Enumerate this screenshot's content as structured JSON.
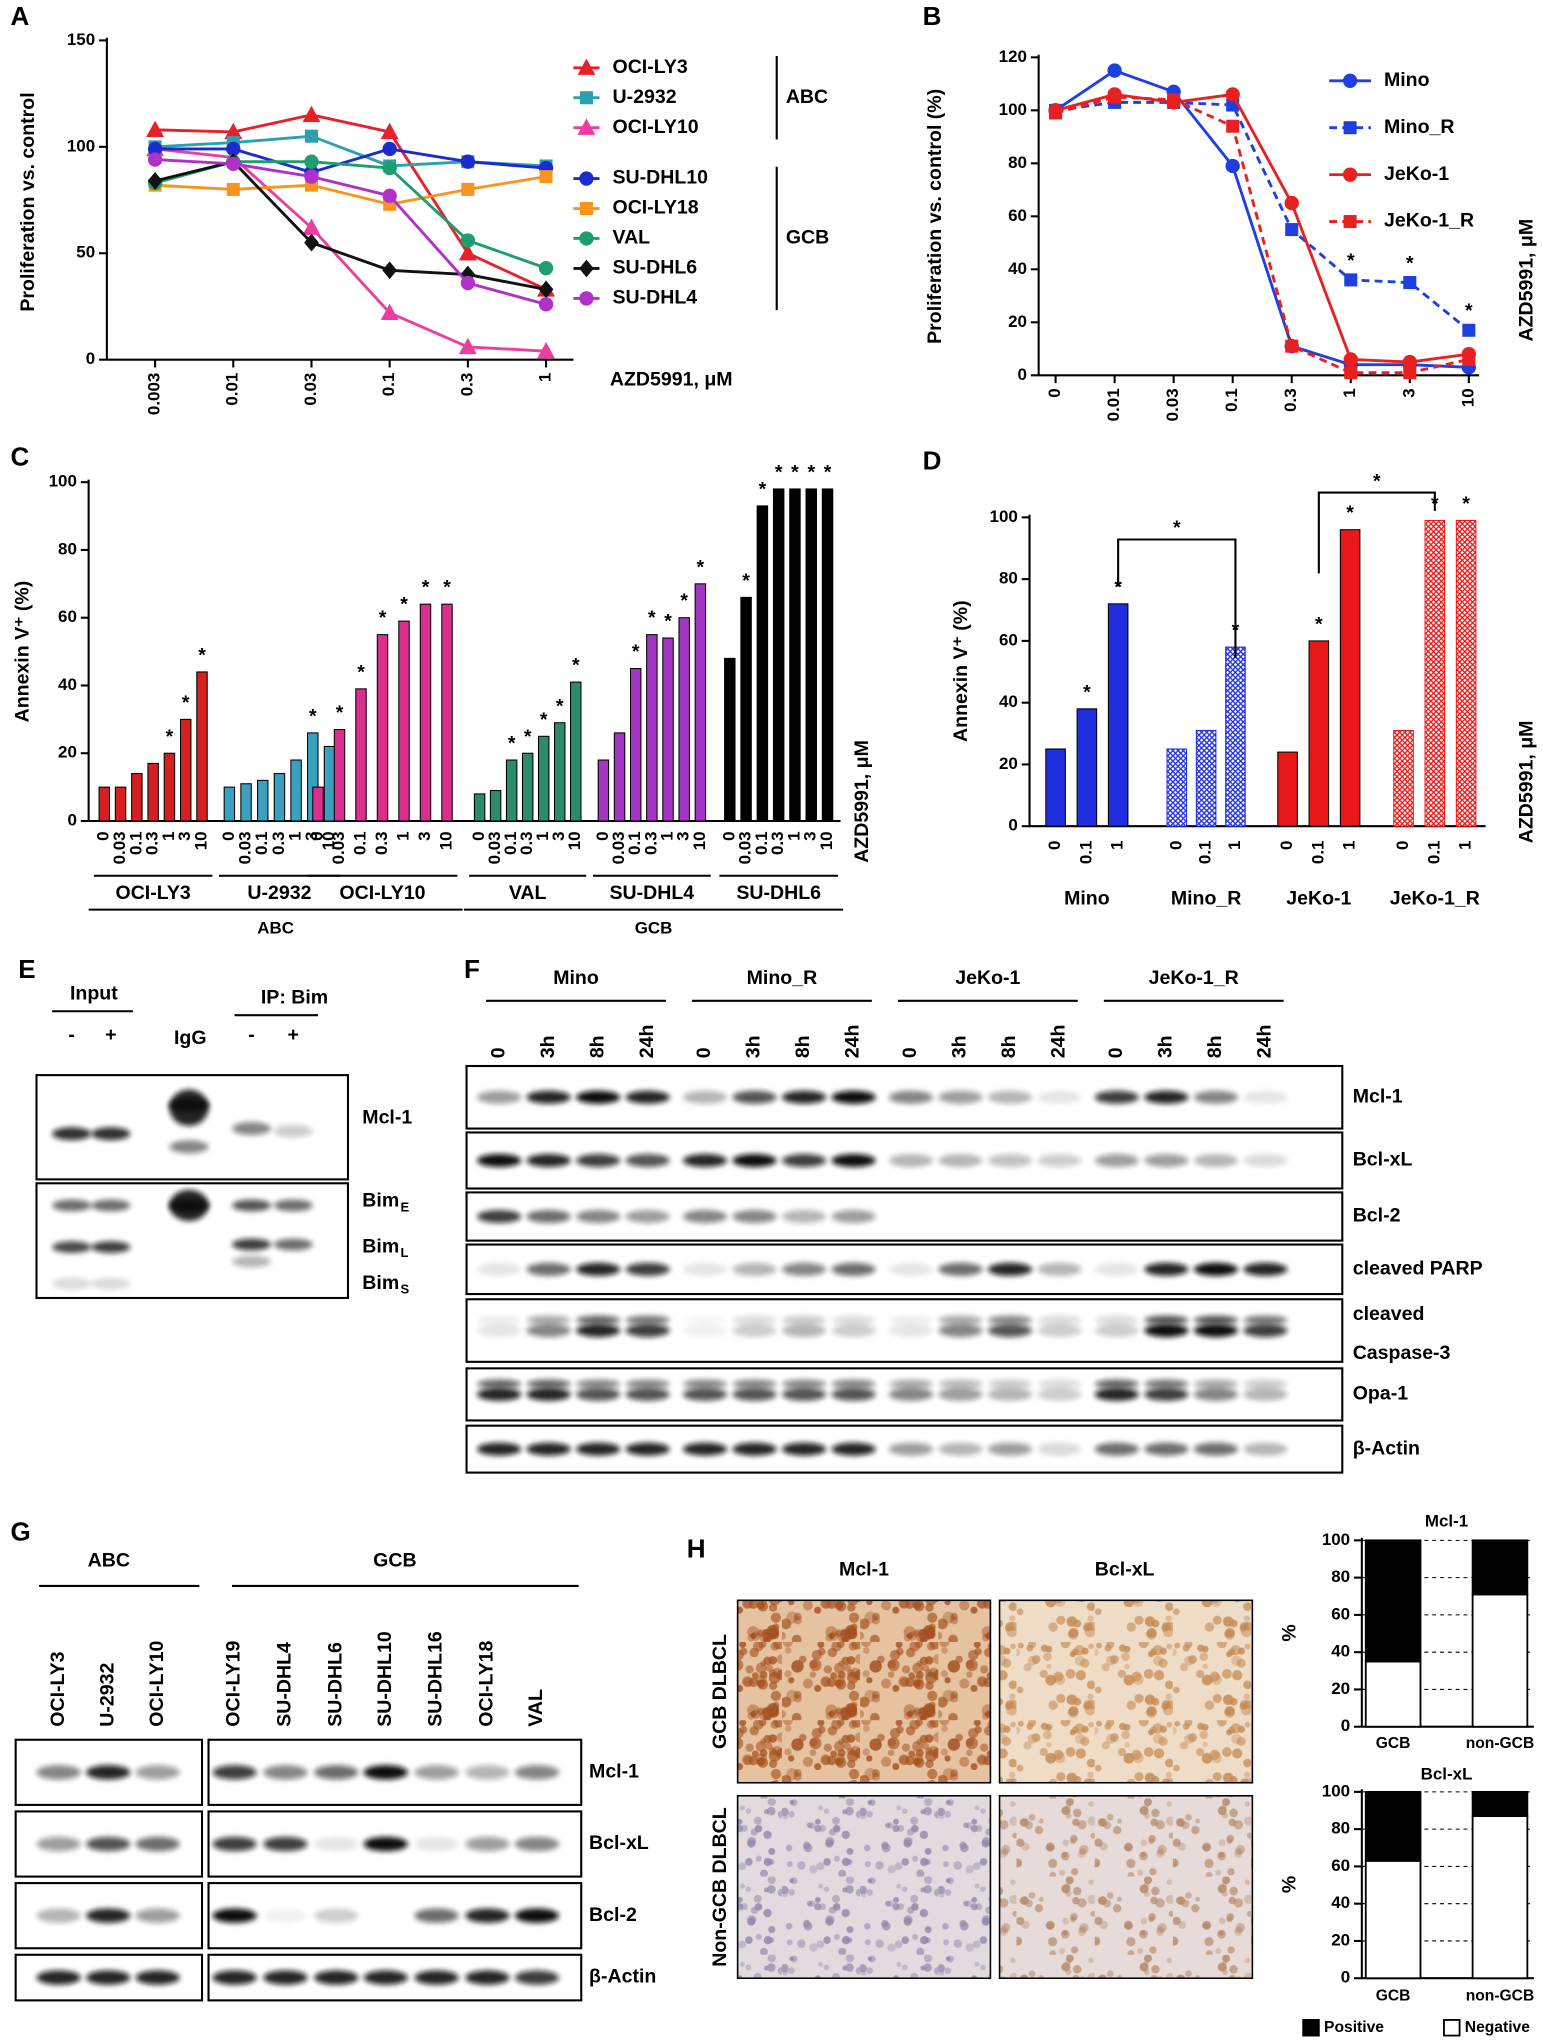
{
  "chart_data": [
    {
      "type": "line",
      "label": "A",
      "ylabel": "Proliferation vs. control",
      "xlabel": "AZD5991, μM",
      "categories": [
        "0.003",
        "0.01",
        "0.03",
        "0.1",
        "0.3",
        "1"
      ],
      "ylim": [
        0,
        150
      ],
      "yticks": [
        0,
        50,
        100,
        150
      ],
      "legend_groups": [
        "ABC",
        "GCB"
      ],
      "series": [
        {
          "name": "OCI-LY3",
          "color": "#e8202a",
          "marker": "triangle",
          "values": [
            108,
            107,
            115,
            107,
            50,
            33
          ]
        },
        {
          "name": "U-2932",
          "color": "#2aa0b0",
          "marker": "square",
          "values": [
            100,
            102,
            105,
            91,
            93,
            91
          ]
        },
        {
          "name": "OCI-LY10",
          "color": "#ec3ea0",
          "marker": "triangle",
          "values": [
            99,
            95,
            62,
            22,
            6,
            4
          ]
        },
        {
          "name": "SU-DHL10",
          "color": "#1c2bd0",
          "marker": "circle",
          "values": [
            99,
            99,
            88,
            99,
            93,
            90
          ]
        },
        {
          "name": "OCI-LY18",
          "color": "#f7941d",
          "marker": "square",
          "values": [
            82,
            80,
            82,
            73,
            80,
            86
          ]
        },
        {
          "name": "VAL",
          "color": "#1e9e6e",
          "marker": "circle",
          "values": [
            83,
            93,
            93,
            90,
            56,
            43
          ]
        },
        {
          "name": "SU-DHL6",
          "color": "#111111",
          "marker": "diamond",
          "values": [
            84,
            93,
            55,
            42,
            40,
            33
          ]
        },
        {
          "name": "SU-DHL4",
          "color": "#b030c8",
          "marker": "circle",
          "values": [
            94,
            92,
            86,
            77,
            36,
            26
          ]
        }
      ]
    },
    {
      "type": "line",
      "label": "B",
      "ylabel": "Proliferation vs. control (%)",
      "xlabel": "AZD5991, μM",
      "categories": [
        "0",
        "0.01",
        "0.03",
        "0.1",
        "0.3",
        "1",
        "3",
        "10"
      ],
      "ylim": [
        0,
        120
      ],
      "yticks": [
        0,
        20,
        40,
        60,
        80,
        100,
        120
      ],
      "series": [
        {
          "name": "Mino",
          "color": "#1f3fe0",
          "marker": "circle",
          "dashed": false,
          "values": [
            100,
            115,
            107,
            79,
            11,
            4,
            4,
            3
          ]
        },
        {
          "name": "Mino_R",
          "color": "#1f3fe0",
          "marker": "square",
          "dashed": true,
          "values": [
            100,
            103,
            103,
            102,
            55,
            36,
            35,
            17
          ],
          "annotations": [
            null,
            null,
            null,
            null,
            "*",
            "*",
            "*",
            "*"
          ]
        },
        {
          "name": "JeKo-1",
          "color": "#e82020",
          "marker": "circle",
          "dashed": false,
          "values": [
            100,
            106,
            103,
            106,
            65,
            6,
            5,
            8
          ]
        },
        {
          "name": "JeKo-1_R",
          "color": "#e82020",
          "marker": "square",
          "dashed": true,
          "values": [
            99,
            105,
            104,
            94,
            11,
            1,
            1,
            6
          ]
        }
      ]
    },
    {
      "type": "groupbar",
      "label": "C",
      "ylabel": "Annexin V⁺ (%)",
      "xlabel": "AZD5991, μM",
      "ylim": [
        0,
        100
      ],
      "yticks": [
        0,
        20,
        40,
        60,
        80,
        100
      ],
      "supergroups": [
        "ABC",
        "GCB"
      ],
      "groups": [
        {
          "name": "OCI-LY3",
          "color": "#d42020",
          "pattern": "solid",
          "categories": [
            "0",
            "0.03",
            "0.1",
            "0.3",
            "1",
            "3",
            "10"
          ],
          "values": [
            10,
            10,
            14,
            17,
            20,
            30,
            44
          ],
          "annotations": [
            null,
            null,
            null,
            null,
            "*",
            "*",
            "*"
          ]
        },
        {
          "name": "U-2932",
          "color": "#3a9fc0",
          "pattern": "solid",
          "categories": [
            "0",
            "0.03",
            "0.1",
            "0.3",
            "1",
            "3",
            "10"
          ],
          "values": [
            10,
            11,
            12,
            14,
            18,
            26,
            22
          ],
          "annotations": [
            null,
            null,
            null,
            null,
            null,
            "*",
            null
          ]
        },
        {
          "name": "OCI-LY10",
          "color": "#d8308c",
          "pattern": "solid",
          "categories": [
            "0",
            "0.03",
            "0.1",
            "0.3",
            "1",
            "3",
            "10"
          ],
          "values": [
            10,
            27,
            39,
            55,
            59,
            64,
            64
          ],
          "annotations": [
            null,
            "*",
            "*",
            "*",
            "*",
            "*",
            "*"
          ]
        },
        {
          "name": "VAL",
          "color": "#2a8c6a",
          "pattern": "solid",
          "categories": [
            "0",
            "0.03",
            "0.1",
            "0.3",
            "1",
            "3",
            "10"
          ],
          "values": [
            8,
            9,
            18,
            20,
            25,
            29,
            41
          ],
          "annotations": [
            null,
            null,
            "*",
            "*",
            "*",
            "*",
            "*"
          ]
        },
        {
          "name": "SU-DHL4",
          "color": "#a335c4",
          "pattern": "solid",
          "categories": [
            "0",
            "0.03",
            "0.1",
            "0.3",
            "1",
            "3",
            "10"
          ],
          "values": [
            18,
            26,
            45,
            55,
            54,
            60,
            70
          ],
          "annotations": [
            null,
            null,
            "*",
            "*",
            "*",
            "*",
            "*"
          ]
        },
        {
          "name": "SU-DHL6",
          "color": "#000000",
          "pattern": "solid",
          "categories": [
            "0",
            "0.03",
            "0.1",
            "0.3",
            "1",
            "3",
            "10"
          ],
          "values": [
            48,
            66,
            93,
            98,
            98,
            98,
            98
          ],
          "annotations": [
            null,
            "*",
            "*",
            "*",
            "*",
            "*",
            "*"
          ]
        }
      ]
    },
    {
      "type": "groupbar",
      "label": "D",
      "ylabel": "Annexin V⁺ (%)",
      "xlabel": "AZD5991, μM",
      "ylim": [
        0,
        100
      ],
      "yticks": [
        0,
        20,
        40,
        60,
        80,
        100
      ],
      "brackets": [
        "*",
        "*"
      ],
      "groups": [
        {
          "name": "Mino",
          "color": "#1f2fe0",
          "pattern": "solid",
          "categories": [
            "0",
            "0.1",
            "1"
          ],
          "values": [
            25,
            38,
            72
          ],
          "annotations": [
            null,
            "*",
            "*"
          ]
        },
        {
          "name": "Mino_R",
          "color": "#1f2fe0",
          "pattern": "crosshatch",
          "categories": [
            "0",
            "0.1",
            "1"
          ],
          "values": [
            25,
            31,
            58
          ],
          "annotations": [
            null,
            null,
            "*"
          ]
        },
        {
          "name": "JeKo-1",
          "color": "#e81818",
          "pattern": "solid",
          "categories": [
            "0",
            "0.1",
            "1"
          ],
          "values": [
            24,
            60,
            96
          ],
          "annotations": [
            null,
            "*",
            "*"
          ]
        },
        {
          "name": "JeKo-1_R",
          "color": "#e81818",
          "pattern": "crosshatch",
          "categories": [
            "0",
            "0.1",
            "1"
          ],
          "values": [
            31,
            99,
            99
          ],
          "annotations": [
            null,
            "*",
            "*"
          ]
        }
      ]
    },
    {
      "type": "stackbar",
      "title": "Mcl-1",
      "ylabel": "%",
      "categories": [
        "GCB",
        "non-GCB"
      ],
      "ylim": [
        0,
        100
      ],
      "yticks": [
        0,
        20,
        40,
        60,
        80,
        100
      ],
      "grid": true,
      "series": [
        {
          "color": "#ffffff",
          "values": [
            35,
            71
          ]
        },
        {
          "color": "#000000",
          "values": [
            65,
            29
          ]
        }
      ]
    },
    {
      "type": "stackbar",
      "title": "Bcl-xL",
      "ylabel": "%",
      "categories": [
        "GCB",
        "non-GCB"
      ],
      "ylim": [
        0,
        100
      ],
      "yticks": [
        0,
        20,
        40,
        60,
        80,
        100
      ],
      "grid": true,
      "series": [
        {
          "name": "Negative",
          "color": "#ffffff",
          "values": [
            63,
            87
          ]
        },
        {
          "name": "Positive",
          "color": "#000000",
          "values": [
            37,
            13
          ]
        }
      ]
    }
  ],
  "panel_e": {
    "label": "E",
    "input": "Input",
    "ip": "IP: Bim",
    "igg": "IgG",
    "lanes": [
      "-",
      "+",
      "-",
      "+"
    ],
    "rows": [
      "Mcl-1",
      {
        "text": "Bim",
        "sub": "E"
      },
      {
        "text": "Bim",
        "sub": "L"
      },
      {
        "text": "Bim",
        "sub": "S"
      }
    ]
  },
  "panel_f": {
    "label": "F",
    "groups": [
      {
        "name": "Mino",
        "times": [
          "0",
          "3h",
          "8h",
          "24h"
        ]
      },
      {
        "name": "Mino_R",
        "times": [
          "0",
          "3h",
          "8h",
          "24h"
        ]
      },
      {
        "name": "JeKo-1",
        "times": [
          "0",
          "3h",
          "8h",
          "24h"
        ]
      },
      {
        "name": "JeKo-1_R",
        "times": [
          "0",
          "3h",
          "8h",
          "24h"
        ]
      }
    ],
    "rows": [
      "Mcl-1",
      "Bcl-xL",
      "Bcl-2",
      "cleaved PARP",
      [
        "cleaved",
        "Caspase-3"
      ],
      "Opa-1",
      "β-Actin"
    ]
  },
  "panel_g": {
    "label": "G",
    "groups": [
      {
        "name": "ABC",
        "lanes": [
          "OCI-LY3",
          "U-2932",
          "OCI-LY10"
        ]
      },
      {
        "name": "GCB",
        "lanes": [
          "OCI-LY19",
          "SU-DHL4",
          "SU-DHL6",
          "SU-DHL10",
          "SU-DHL16",
          "OCI-LY18",
          "VAL"
        ]
      }
    ],
    "rows": [
      "Mcl-1",
      "Bcl-xL",
      "Bcl-2",
      "β-Actin"
    ]
  },
  "panel_h": {
    "label": "H",
    "columns": [
      "Mcl-1",
      "Bcl-xL"
    ],
    "rows": [
      "GCB DLBCL",
      "Non-GCB DLBCL"
    ]
  }
}
